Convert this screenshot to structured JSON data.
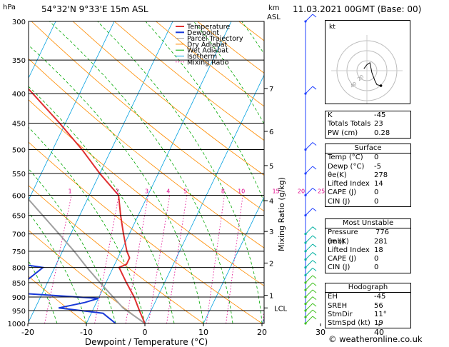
{
  "header": {
    "units_hpa": "hPa",
    "location": "54°32'N  9°33'E  15m  ASL",
    "km_label": "km",
    "asl_label": "ASL",
    "datetime": "11.03.2021  00GMT  (Base: 00)"
  },
  "legend": [
    "Temperature",
    "Dewpoint",
    "Parcel Trajectory",
    "Dry Adiabat",
    "Wet Adiabat",
    "Isotherm",
    "Mixing Ratio"
  ],
  "colors": {
    "temperature": "#e03030",
    "dewpoint": "#1838d8",
    "parcel": "#a0a0a0",
    "dry_adiabat": "#ff8c00",
    "wet_adiabat": "#00a800",
    "isotherm": "#00a0e0",
    "mixing_ratio": "#e0008a",
    "wind": "#2040ff"
  },
  "chart_data": {
    "type": "skew-t",
    "xlabel": "Dewpoint / Temperature (°C)",
    "ylabel_right": "Mixing Ratio (g/kg)",
    "x_ticks": [
      "-30",
      "-20",
      "-10",
      "0",
      "10",
      "20",
      "30",
      "40"
    ],
    "pressure_levels": [
      "300",
      "350",
      "400",
      "450",
      "500",
      "550",
      "600",
      "650",
      "700",
      "750",
      "800",
      "850",
      "900",
      "950",
      "1000"
    ],
    "km_ticks": [
      {
        "p": 392,
        "label": "7"
      },
      {
        "p": 465,
        "label": "6"
      },
      {
        "p": 533,
        "label": "5"
      },
      {
        "p": 613,
        "label": "4"
      },
      {
        "p": 693,
        "label": "3"
      },
      {
        "p": 786,
        "label": "2"
      },
      {
        "p": 894,
        "label": "1"
      },
      {
        "p": 940,
        "label": "LCL"
      }
    ],
    "mixing_ratio_labels": [
      "1",
      "2",
      "3",
      "4",
      "5",
      "8",
      "10",
      "15",
      "20",
      "25"
    ],
    "temperature_profile": [
      {
        "p": 1000,
        "t": 0
      },
      {
        "p": 950,
        "t": -2
      },
      {
        "p": 900,
        "t": -4
      },
      {
        "p": 850,
        "t": -6.5
      },
      {
        "p": 800,
        "t": -9
      },
      {
        "p": 790,
        "t": -8
      },
      {
        "p": 770,
        "t": -8
      },
      {
        "p": 750,
        "t": -9
      },
      {
        "p": 700,
        "t": -11
      },
      {
        "p": 650,
        "t": -13
      },
      {
        "p": 600,
        "t": -15
      },
      {
        "p": 550,
        "t": -20
      },
      {
        "p": 500,
        "t": -25
      },
      {
        "p": 450,
        "t": -31
      },
      {
        "p": 400,
        "t": -38
      },
      {
        "p": 350,
        "t": -46
      },
      {
        "p": 300,
        "t": -55
      }
    ],
    "dewpoint_profile": [
      {
        "p": 1000,
        "t": -5
      },
      {
        "p": 960,
        "t": -8
      },
      {
        "p": 940,
        "t": -16
      },
      {
        "p": 920,
        "t": -12
      },
      {
        "p": 905,
        "t": -10
      },
      {
        "p": 885,
        "t": -25
      },
      {
        "p": 850,
        "t": -24
      },
      {
        "p": 800,
        "t": -22
      },
      {
        "p": 770,
        "t": -34
      },
      {
        "p": 740,
        "t": -45
      },
      {
        "p": 650,
        "t": -50
      },
      {
        "p": 600,
        "t": -34
      },
      {
        "p": 550,
        "t": -33
      },
      {
        "p": 500,
        "t": -35
      },
      {
        "p": 450,
        "t": -41
      },
      {
        "p": 400,
        "t": -47
      },
      {
        "p": 350,
        "t": -55
      },
      {
        "p": 300,
        "t": -62
      }
    ],
    "parcel_profile": [
      {
        "p": 1000,
        "t": 0
      },
      {
        "p": 940,
        "t": -5
      },
      {
        "p": 850,
        "t": -11
      },
      {
        "p": 800,
        "t": -14.5
      },
      {
        "p": 750,
        "t": -18
      },
      {
        "p": 700,
        "t": -22
      },
      {
        "p": 600,
        "t": -31
      },
      {
        "p": 500,
        "t": -42
      },
      {
        "p": 400,
        "t": -55
      },
      {
        "p": 300,
        "t": -70
      }
    ],
    "wind_barbs_p": [
      1000,
      975,
      950,
      925,
      900,
      875,
      850,
      825,
      800,
      775,
      750,
      725,
      700,
      650,
      600,
      550,
      500,
      400,
      300
    ],
    "hodograph": {
      "label": "kt",
      "ring_labels": [
        "20",
        "40"
      ],
      "trace_kt": [
        [
          -3,
          2
        ],
        [
          0,
          6
        ],
        [
          3,
          8
        ],
        [
          4,
          3
        ],
        [
          5,
          -2
        ],
        [
          8,
          -10
        ],
        [
          10,
          -14
        ],
        [
          14,
          -15
        ]
      ]
    }
  },
  "indices": {
    "rows": [
      {
        "label": "K",
        "value": "-45"
      },
      {
        "label": "Totals Totals",
        "value": "23"
      },
      {
        "label": "PW (cm)",
        "value": "0.28"
      }
    ]
  },
  "surface": {
    "title": "Surface",
    "rows": [
      {
        "label": "Temp (°C)",
        "value": "0"
      },
      {
        "label": "Dewp (°C)",
        "value": "-5"
      },
      {
        "label": "θe(K)",
        "value": "278"
      },
      {
        "label": "Lifted Index",
        "value": "14"
      },
      {
        "label": "CAPE (J)",
        "value": "0"
      },
      {
        "label": "CIN (J)",
        "value": "0"
      }
    ]
  },
  "unstable": {
    "title": "Most Unstable",
    "rows": [
      {
        "label": "Pressure (mb)",
        "value": "776"
      },
      {
        "label": "θe (K)",
        "value": "281"
      },
      {
        "label": "Lifted Index",
        "value": "18"
      },
      {
        "label": "CAPE (J)",
        "value": "0"
      },
      {
        "label": "CIN (J)",
        "value": "0"
      }
    ]
  },
  "hodograph_stats": {
    "title": "Hodograph",
    "rows": [
      {
        "label": "EH",
        "value": "-45"
      },
      {
        "label": "SREH",
        "value": "56"
      },
      {
        "label": "StmDir",
        "value": "11°"
      },
      {
        "label": "StmSpd (kt)",
        "value": "19"
      }
    ]
  },
  "copyright": "© weatheronline.co.uk"
}
